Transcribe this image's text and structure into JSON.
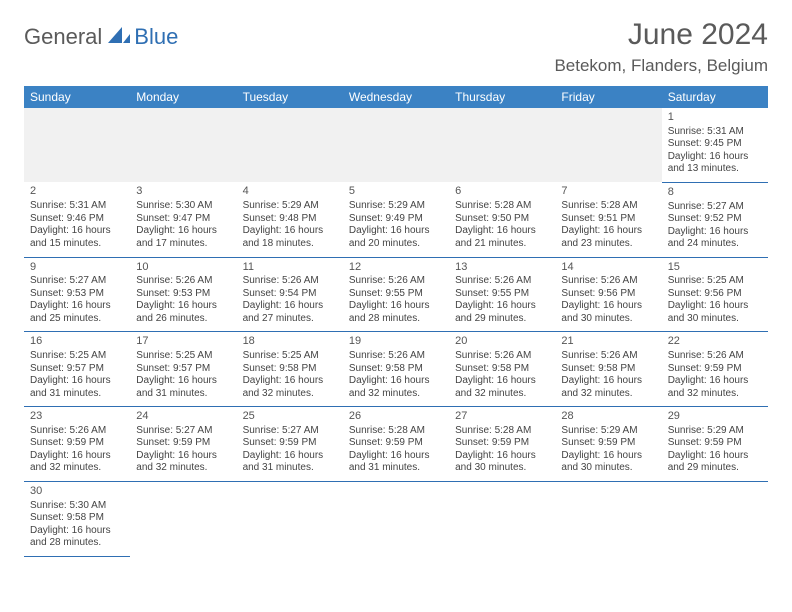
{
  "logo": {
    "part1": "General",
    "part2": "Blue"
  },
  "title": "June 2024",
  "location": "Betekom, Flanders, Belgium",
  "colors": {
    "header_bg": "#3b82c4",
    "header_text": "#ffffff",
    "rule": "#2f6fb3",
    "logo_gray": "#5a5a5a",
    "logo_blue": "#2f6fb3",
    "text": "#444444",
    "blank_bg": "#f1f1f1"
  },
  "weekdays": [
    "Sunday",
    "Monday",
    "Tuesday",
    "Wednesday",
    "Thursday",
    "Friday",
    "Saturday"
  ],
  "first_weekday_index": 6,
  "days": [
    {
      "n": 1,
      "sunrise": "5:31 AM",
      "sunset": "9:45 PM",
      "daylight": "16 hours and 13 minutes."
    },
    {
      "n": 2,
      "sunrise": "5:31 AM",
      "sunset": "9:46 PM",
      "daylight": "16 hours and 15 minutes."
    },
    {
      "n": 3,
      "sunrise": "5:30 AM",
      "sunset": "9:47 PM",
      "daylight": "16 hours and 17 minutes."
    },
    {
      "n": 4,
      "sunrise": "5:29 AM",
      "sunset": "9:48 PM",
      "daylight": "16 hours and 18 minutes."
    },
    {
      "n": 5,
      "sunrise": "5:29 AM",
      "sunset": "9:49 PM",
      "daylight": "16 hours and 20 minutes."
    },
    {
      "n": 6,
      "sunrise": "5:28 AM",
      "sunset": "9:50 PM",
      "daylight": "16 hours and 21 minutes."
    },
    {
      "n": 7,
      "sunrise": "5:28 AM",
      "sunset": "9:51 PM",
      "daylight": "16 hours and 23 minutes."
    },
    {
      "n": 8,
      "sunrise": "5:27 AM",
      "sunset": "9:52 PM",
      "daylight": "16 hours and 24 minutes."
    },
    {
      "n": 9,
      "sunrise": "5:27 AM",
      "sunset": "9:53 PM",
      "daylight": "16 hours and 25 minutes."
    },
    {
      "n": 10,
      "sunrise": "5:26 AM",
      "sunset": "9:53 PM",
      "daylight": "16 hours and 26 minutes."
    },
    {
      "n": 11,
      "sunrise": "5:26 AM",
      "sunset": "9:54 PM",
      "daylight": "16 hours and 27 minutes."
    },
    {
      "n": 12,
      "sunrise": "5:26 AM",
      "sunset": "9:55 PM",
      "daylight": "16 hours and 28 minutes."
    },
    {
      "n": 13,
      "sunrise": "5:26 AM",
      "sunset": "9:55 PM",
      "daylight": "16 hours and 29 minutes."
    },
    {
      "n": 14,
      "sunrise": "5:26 AM",
      "sunset": "9:56 PM",
      "daylight": "16 hours and 30 minutes."
    },
    {
      "n": 15,
      "sunrise": "5:25 AM",
      "sunset": "9:56 PM",
      "daylight": "16 hours and 30 minutes."
    },
    {
      "n": 16,
      "sunrise": "5:25 AM",
      "sunset": "9:57 PM",
      "daylight": "16 hours and 31 minutes."
    },
    {
      "n": 17,
      "sunrise": "5:25 AM",
      "sunset": "9:57 PM",
      "daylight": "16 hours and 31 minutes."
    },
    {
      "n": 18,
      "sunrise": "5:25 AM",
      "sunset": "9:58 PM",
      "daylight": "16 hours and 32 minutes."
    },
    {
      "n": 19,
      "sunrise": "5:26 AM",
      "sunset": "9:58 PM",
      "daylight": "16 hours and 32 minutes."
    },
    {
      "n": 20,
      "sunrise": "5:26 AM",
      "sunset": "9:58 PM",
      "daylight": "16 hours and 32 minutes."
    },
    {
      "n": 21,
      "sunrise": "5:26 AM",
      "sunset": "9:58 PM",
      "daylight": "16 hours and 32 minutes."
    },
    {
      "n": 22,
      "sunrise": "5:26 AM",
      "sunset": "9:59 PM",
      "daylight": "16 hours and 32 minutes."
    },
    {
      "n": 23,
      "sunrise": "5:26 AM",
      "sunset": "9:59 PM",
      "daylight": "16 hours and 32 minutes."
    },
    {
      "n": 24,
      "sunrise": "5:27 AM",
      "sunset": "9:59 PM",
      "daylight": "16 hours and 32 minutes."
    },
    {
      "n": 25,
      "sunrise": "5:27 AM",
      "sunset": "9:59 PM",
      "daylight": "16 hours and 31 minutes."
    },
    {
      "n": 26,
      "sunrise": "5:28 AM",
      "sunset": "9:59 PM",
      "daylight": "16 hours and 31 minutes."
    },
    {
      "n": 27,
      "sunrise": "5:28 AM",
      "sunset": "9:59 PM",
      "daylight": "16 hours and 30 minutes."
    },
    {
      "n": 28,
      "sunrise": "5:29 AM",
      "sunset": "9:59 PM",
      "daylight": "16 hours and 30 minutes."
    },
    {
      "n": 29,
      "sunrise": "5:29 AM",
      "sunset": "9:59 PM",
      "daylight": "16 hours and 29 minutes."
    },
    {
      "n": 30,
      "sunrise": "5:30 AM",
      "sunset": "9:58 PM",
      "daylight": "16 hours and 28 minutes."
    }
  ],
  "labels": {
    "sunrise": "Sunrise:",
    "sunset": "Sunset:",
    "daylight": "Daylight:"
  }
}
